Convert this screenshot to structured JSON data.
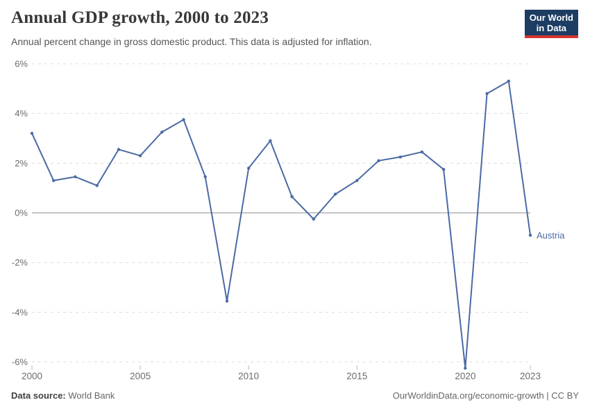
{
  "header": {
    "title": "Annual GDP growth, 2000 to 2023",
    "subtitle": "Annual percent change in gross domestic product. This data is adjusted for inflation.",
    "logo": {
      "line1": "Our World",
      "line2": "in Data",
      "bg_color": "#1d3d63",
      "accent_color": "#d6352f"
    }
  },
  "chart_data": {
    "type": "line",
    "title": "Annual GDP growth, 2000 to 2023",
    "xlabel": "",
    "ylabel": "",
    "x": [
      2000,
      2001,
      2002,
      2003,
      2004,
      2005,
      2006,
      2007,
      2008,
      2009,
      2010,
      2011,
      2012,
      2013,
      2014,
      2015,
      2016,
      2017,
      2018,
      2019,
      2020,
      2021,
      2022,
      2023
    ],
    "series": [
      {
        "name": "Austria",
        "color": "#4a69a5",
        "values": [
          3.2,
          1.3,
          1.45,
          1.1,
          2.55,
          2.3,
          3.25,
          3.75,
          1.45,
          -3.55,
          1.8,
          2.9,
          0.65,
          -0.25,
          0.75,
          1.3,
          2.1,
          2.25,
          2.45,
          1.75,
          -6.25,
          4.8,
          5.3,
          -0.9
        ]
      }
    ],
    "ylim": [
      -6.6,
      6.4
    ],
    "yticks": [
      6,
      4,
      2,
      0,
      -2,
      -4,
      -6
    ],
    "ytick_suffix": "%",
    "xticks": [
      2000,
      2005,
      2010,
      2015,
      2020,
      2023
    ],
    "grid": "horizontal-dashed",
    "grid_color": "#dcdcdc",
    "zero_line": true,
    "zero_line_color": "#8c8c8c",
    "axis_text_color": "#6b6b6b",
    "legend_position": "end-of-line",
    "end_label": "Austria"
  },
  "footer": {
    "source_label": "Data source:",
    "source_value": "World Bank",
    "link": "OurWorldinData.org/economic-growth | CC BY"
  }
}
